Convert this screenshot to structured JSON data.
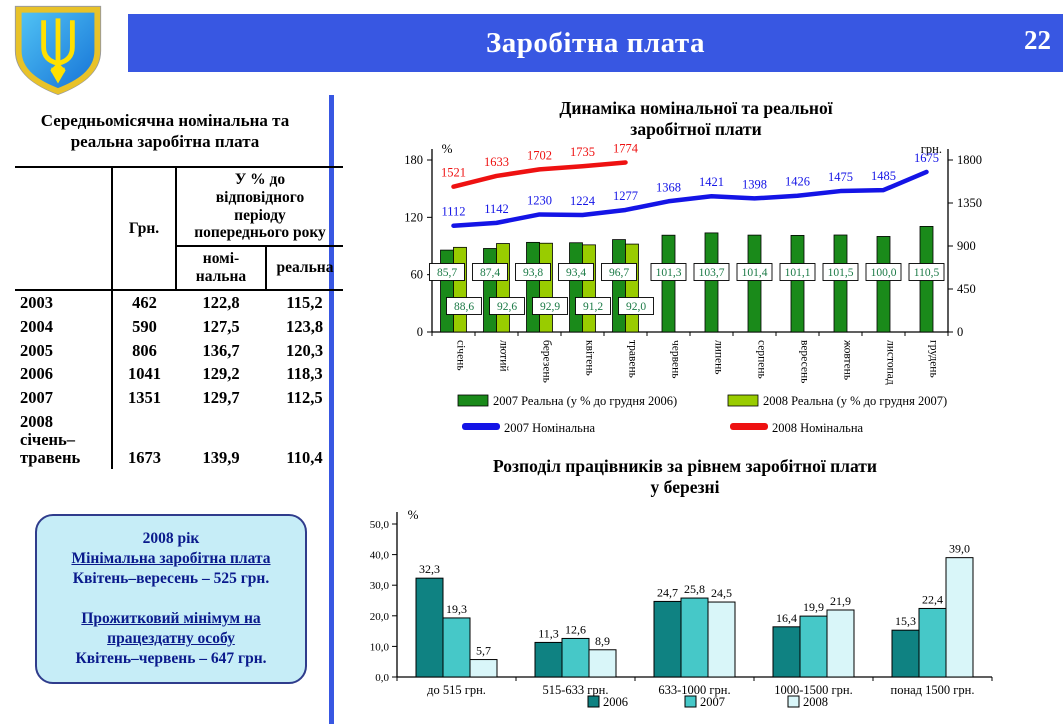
{
  "header": {
    "title": "Заробітна плата",
    "page_number": "22"
  },
  "left_panel": {
    "table_title": "Середньомісячна номінальна та\nреальна  заробітна плата",
    "table": {
      "header": {
        "grn": "Грн.",
        "percent_group": "У % до\nвідповідного\nперіоду\nпопереднього року",
        "nominal": "номі-\nнальна",
        "real": "реальна"
      },
      "rows": [
        {
          "year": "2003",
          "grn": "462",
          "nominal": "122,8",
          "real": "115,2"
        },
        {
          "year": "2004",
          "grn": "590",
          "nominal": "127,5",
          "real": "123,8"
        },
        {
          "year": "2005",
          "grn": "806",
          "nominal": "136,7",
          "real": "120,3"
        },
        {
          "year": "2006",
          "grn": "1041",
          "nominal": "129,2",
          "real": "118,3"
        },
        {
          "year": "2007",
          "grn": "1351",
          "nominal": "129,7",
          "real": "112,5"
        },
        {
          "year": "2008\nсічень–\nтравень",
          "grn": "1673",
          "nominal": "139,9",
          "real": "110,4"
        }
      ]
    },
    "info_box": {
      "lines": [
        {
          "text": "2008 рік",
          "underline": false
        },
        {
          "text": "Мінімальна заробітна плата",
          "underline": true
        },
        {
          "text": "Квітень–вересень – 525 грн.",
          "underline": false
        },
        {
          "text": "",
          "underline": false
        },
        {
          "text": "Прожитковий мінімум на працездатну особу",
          "underline": true
        },
        {
          "text": "Квітень–червень – 647 грн.",
          "underline": false
        }
      ]
    }
  },
  "chart_data": [
    {
      "type": "bar+line",
      "title": "Динаміка номінальної та реальної\nзаробітної плати",
      "categories": [
        "січень",
        "лютий",
        "березень",
        "квітень",
        "травень",
        "червень",
        "липень",
        "серпень",
        "вересень",
        "жовтень",
        "листопад",
        "грудень"
      ],
      "left_axis": {
        "label": "%",
        "min": 0,
        "max": 180,
        "ticks": [
          0,
          60,
          120,
          180
        ]
      },
      "right_axis": {
        "label": "грн.",
        "min": 0,
        "max": 1800,
        "ticks": [
          0,
          450,
          900,
          1350,
          1800
        ]
      },
      "bar_series": [
        {
          "name": "2007 Реальна (у % до грудня 2006)",
          "color": "#1A8A1A",
          "axis": "left",
          "values": [
            85.7,
            87.4,
            93.8,
            93.4,
            96.7,
            101.3,
            103.7,
            101.4,
            101.1,
            101.5,
            100.0,
            110.5
          ]
        },
        {
          "name": "2008 Реальна (у % до грудня 2007)",
          "color": "#99CC00",
          "axis": "left",
          "values": [
            88.6,
            92.6,
            92.9,
            91.2,
            92.0
          ]
        }
      ],
      "line_series": [
        {
          "name": "2007 Номінальна",
          "color": "#1414E6",
          "axis": "right",
          "values": [
            1112,
            1142,
            1230,
            1224,
            1277,
            1368,
            1421,
            1398,
            1426,
            1475,
            1485,
            1675
          ]
        },
        {
          "name": "2008 Номінальна",
          "color": "#EE1111",
          "axis": "right",
          "values": [
            1521,
            1633,
            1702,
            1735,
            1774
          ]
        }
      ],
      "bar_label_color": "#1B7A46",
      "grid": false,
      "legend_position": "bottom"
    },
    {
      "type": "bar",
      "title": "Розподіл працівників за рівнем заробітної плати\nу березні",
      "categories": [
        "до 515 грн.",
        "515-633 грн.",
        "633-1000 грн.",
        "1000-1500 грн.",
        "понад 1500 грн."
      ],
      "series": [
        {
          "name": "2006",
          "color": "#0F8282",
          "values": [
            32.3,
            11.3,
            24.7,
            16.4,
            15.3
          ]
        },
        {
          "name": "2007",
          "color": "#46C8C8",
          "values": [
            19.3,
            12.6,
            25.8,
            19.9,
            22.4
          ]
        },
        {
          "name": "2008",
          "color": "#D9F6F9",
          "values": [
            5.7,
            8.9,
            24.5,
            21.9,
            39.0
          ]
        }
      ],
      "ylabel": "%",
      "ylim": [
        0,
        50
      ],
      "ytick_step": 10,
      "grid": false,
      "legend_position": "bottom"
    }
  ],
  "colors": {
    "header_blue": "#3857E2",
    "divider_blue": "#3857E2",
    "info_box_bg": "#C6EDF7",
    "info_box_border": "#2F3C8C",
    "info_box_text": "#0A1A8C"
  }
}
